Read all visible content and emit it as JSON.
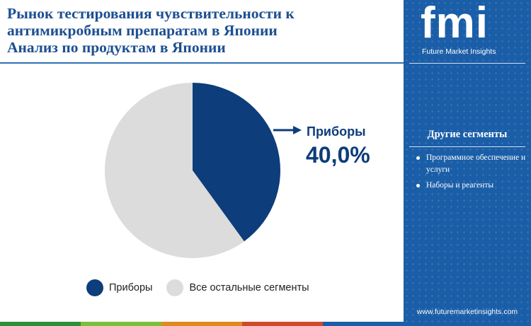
{
  "title": {
    "lines": [
      "Рынок тестирования чувствительности к",
      "антимикробным препаратам в Японии",
      "Анализ по продуктам в Японии"
    ]
  },
  "chart_data": {
    "type": "pie",
    "slices": [
      {
        "label": "Приборы",
        "value": 40.0,
        "color": "#0d3d7a"
      },
      {
        "label": "Все остальные сегменты",
        "value": 60.0,
        "color": "#dcdcdc"
      }
    ],
    "callout": {
      "label": "Приборы",
      "value_text": "40,0%"
    },
    "legend": {
      "position": "bottom",
      "items": [
        "Приборы",
        "Все остальные сегменты"
      ]
    }
  },
  "sidebar": {
    "logo_text": "fmi",
    "logo_caption": "Future Market Insights",
    "heading": "Другие сегменты",
    "items": [
      "Программное обеспечение и услуги",
      "Наборы и реагенты"
    ],
    "url": "www.futuremarketinsights.com"
  },
  "colors": {
    "title": "#1d4f91",
    "sidebar_bg": "#1b5ea8",
    "accent_dark": "#0d3d7a",
    "other_segment": "#dcdcdc",
    "strip": [
      "#2d8f3c",
      "#7cbf3a",
      "#e08a1e",
      "#d04a2a",
      "#1b5ea8"
    ]
  }
}
